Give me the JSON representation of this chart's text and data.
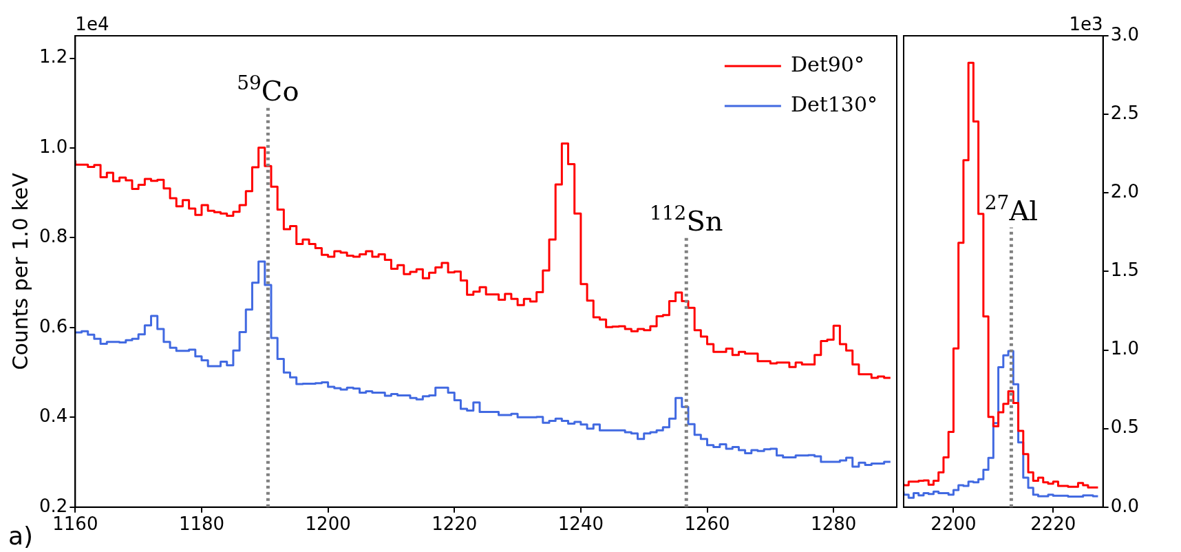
{
  "chart_data": [
    {
      "type": "step",
      "title": "a)",
      "ylabel": "Counts per 1.0 keV",
      "xlim": [
        1160,
        1290
      ],
      "xticks": [
        1160,
        1180,
        1200,
        1220,
        1240,
        1260,
        1280
      ],
      "ylim": [
        0.2,
        1.25
      ],
      "yticks": [
        0.2,
        0.4,
        0.6,
        0.8,
        {
          "value": 1.0,
          "label": "1.0"
        },
        1.2
      ],
      "legend": "top right",
      "x": [
        1160,
        1161,
        1162,
        1163,
        1164,
        1165,
        1166,
        1167,
        1168,
        1169,
        1170,
        1171,
        1172,
        1173,
        1174,
        1175,
        1176,
        1177,
        1178,
        1179,
        1180,
        1181,
        1182,
        1183,
        1184,
        1185,
        1186,
        1187,
        1188,
        1189,
        1190,
        1191,
        1192,
        1193,
        1194,
        1195,
        1196,
        1197,
        1198,
        1199,
        1200,
        1201,
        1202,
        1203,
        1204,
        1205,
        1206,
        1207,
        1208,
        1209,
        1210,
        1211,
        1212,
        1213,
        1214,
        1215,
        1216,
        1217,
        1218,
        1219,
        1220,
        1221,
        1222,
        1223,
        1224,
        1225,
        1226,
        1227,
        1228,
        1229,
        1230,
        1231,
        1232,
        1233,
        1234,
        1235,
        1236,
        1237,
        1238,
        1239,
        1240,
        1241,
        1242,
        1243,
        1244,
        1245,
        1246,
        1247,
        1248,
        1249,
        1250,
        1251,
        1252,
        1253,
        1254,
        1255,
        1256,
        1257,
        1258,
        1259,
        1260,
        1261,
        1262,
        1263,
        1264,
        1265,
        1266,
        1267,
        1268,
        1269,
        1270,
        1271,
        1272,
        1273,
        1274,
        1275,
        1276,
        1277,
        1278,
        1279,
        1280,
        1281,
        1282,
        1283,
        1284,
        1285,
        1286,
        1287,
        1288,
        1289
      ],
      "series": [
        {
          "name": "Det90°",
          "color": "#ff0000",
          "values": [
            0.972,
            0.963,
            0.963,
            0.958,
            0.962,
            0.935,
            0.945,
            0.926,
            0.934,
            0.928,
            0.909,
            0.918,
            0.931,
            0.927,
            0.929,
            0.91,
            0.888,
            0.87,
            0.884,
            0.865,
            0.851,
            0.873,
            0.86,
            0.857,
            0.854,
            0.849,
            0.858,
            0.873,
            0.904,
            0.957,
            1.001,
            0.96,
            0.914,
            0.863,
            0.819,
            0.826,
            0.786,
            0.796,
            0.786,
            0.777,
            0.762,
            0.758,
            0.77,
            0.767,
            0.76,
            0.758,
            0.763,
            0.77,
            0.758,
            0.763,
            0.751,
            0.731,
            0.739,
            0.719,
            0.724,
            0.73,
            0.71,
            0.722,
            0.734,
            0.744,
            0.723,
            0.725,
            0.705,
            0.673,
            0.68,
            0.69,
            0.674,
            0.674,
            0.662,
            0.675,
            0.664,
            0.65,
            0.664,
            0.658,
            0.679,
            0.727,
            0.796,
            0.919,
            1.01,
            0.964,
            0.854,
            0.697,
            0.66,
            0.623,
            0.618,
            0.601,
            0.602,
            0.603,
            0.597,
            0.592,
            0.597,
            0.594,
            0.603,
            0.625,
            0.628,
            0.659,
            0.678,
            0.659,
            0.644,
            0.594,
            0.58,
            0.563,
            0.546,
            0.546,
            0.553,
            0.539,
            0.546,
            0.542,
            0.542,
            0.525,
            0.525,
            0.52,
            0.522,
            0.522,
            0.512,
            0.522,
            0.518,
            0.518,
            0.539,
            0.57,
            0.573,
            0.604,
            0.563,
            0.549,
            0.518,
            0.496,
            0.496,
            0.488,
            0.491,
            0.488
          ]
        },
        {
          "name": "Det130°",
          "color": "#4169e1",
          "values": [
            0.59,
            0.589,
            0.592,
            0.584,
            0.575,
            0.564,
            0.568,
            0.568,
            0.567,
            0.572,
            0.575,
            0.585,
            0.605,
            0.626,
            0.597,
            0.568,
            0.555,
            0.548,
            0.548,
            0.551,
            0.536,
            0.527,
            0.514,
            0.514,
            0.524,
            0.516,
            0.549,
            0.59,
            0.64,
            0.7,
            0.747,
            0.695,
            0.577,
            0.53,
            0.5,
            0.489,
            0.474,
            0.475,
            0.475,
            0.476,
            0.478,
            0.468,
            0.465,
            0.462,
            0.466,
            0.464,
            0.455,
            0.458,
            0.455,
            0.455,
            0.448,
            0.452,
            0.449,
            0.449,
            0.443,
            0.44,
            0.447,
            0.449,
            0.466,
            0.466,
            0.455,
            0.438,
            0.419,
            0.415,
            0.433,
            0.412,
            0.412,
            0.412,
            0.405,
            0.405,
            0.408,
            0.4,
            0.4,
            0.4,
            0.401,
            0.388,
            0.392,
            0.397,
            0.392,
            0.386,
            0.39,
            0.384,
            0.375,
            0.384,
            0.371,
            0.371,
            0.371,
            0.371,
            0.367,
            0.364,
            0.352,
            0.364,
            0.367,
            0.371,
            0.378,
            0.397,
            0.443,
            0.423,
            0.385,
            0.361,
            0.352,
            0.338,
            0.334,
            0.34,
            0.33,
            0.334,
            0.327,
            0.32,
            0.327,
            0.325,
            0.329,
            0.33,
            0.315,
            0.311,
            0.311,
            0.315,
            0.315,
            0.316,
            0.313,
            0.301,
            0.301,
            0.301,
            0.304,
            0.31,
            0.29,
            0.299,
            0.294,
            0.297,
            0.297,
            0.301
          ]
        }
      ],
      "ref_lines": [
        {
          "axis": "x",
          "value": 1190.5,
          "color": "#808080",
          "line_style": "dotted"
        },
        {
          "axis": "x",
          "value": 1256.7,
          "color": "#808080",
          "line_style": "dotted"
        }
      ],
      "annotations": [
        "1e4",
        {
          "text": "$^{59}$Co",
          "x": 1190.5,
          "y": 1.09
        },
        {
          "text": "$^{112}$Sn",
          "x": 1256.7,
          "y": 0.8
        }
      ]
    },
    {
      "type": "step",
      "xlim": [
        2190,
        2230
      ],
      "xticks": [
        2200,
        2220
      ],
      "ylim": [
        0,
        3.0
      ],
      "yticks": [
        {
          "value": 0,
          "label": "0.0"
        },
        0.5,
        {
          "value": 1,
          "label": "1.0"
        },
        1.5,
        {
          "value": 2,
          "label": "2.0"
        },
        2.5,
        {
          "value": 3,
          "label": "3.0"
        }
      ],
      "x": [
        2190,
        2191,
        2192,
        2193,
        2194,
        2195,
        2196,
        2197,
        2198,
        2199,
        2200,
        2201,
        2202,
        2203,
        2204,
        2205,
        2206,
        2207,
        2208,
        2209,
        2210,
        2211,
        2212,
        2213,
        2214,
        2215,
        2216,
        2217,
        2218,
        2219,
        2220,
        2221,
        2222,
        2223,
        2224,
        2225,
        2226,
        2227,
        2228,
        2229
      ],
      "series": [
        {
          "color": "#ff0000",
          "values": [
            0.149,
            0.139,
            0.162,
            0.162,
            0.168,
            0.17,
            0.143,
            0.168,
            0.222,
            0.317,
            0.479,
            1.01,
            1.683,
            2.208,
            2.828,
            2.455,
            1.867,
            1.214,
            0.574,
            0.515,
            0.604,
            0.657,
            0.737,
            0.663,
            0.485,
            0.337,
            0.222,
            0.168,
            0.188,
            0.158,
            0.149,
            0.162,
            0.135,
            0.135,
            0.129,
            0.129,
            0.154,
            0.139,
            0.125,
            0.125
          ]
        },
        {
          "color": "#4169e1",
          "values": [
            0.099,
            0.079,
            0.059,
            0.089,
            0.075,
            0.089,
            0.083,
            0.099,
            0.089,
            0.089,
            0.079,
            0.109,
            0.139,
            0.135,
            0.162,
            0.158,
            0.178,
            0.238,
            0.313,
            0.535,
            0.891,
            0.966,
            0.994,
            0.782,
            0.412,
            0.188,
            0.123,
            0.079,
            0.069,
            0.069,
            0.079,
            0.073,
            0.073,
            0.073,
            0.067,
            0.067,
            0.067,
            0.075,
            0.075,
            0.069
          ]
        }
      ],
      "ref_lines": [
        {
          "axis": "x",
          "value": 2211.6,
          "color": "#808080",
          "line_style": "dotted"
        }
      ],
      "annotations": [
        "1e3",
        {
          "text": "$^{27}$Al",
          "x": 2211.6,
          "y": 1.78
        }
      ]
    }
  ]
}
